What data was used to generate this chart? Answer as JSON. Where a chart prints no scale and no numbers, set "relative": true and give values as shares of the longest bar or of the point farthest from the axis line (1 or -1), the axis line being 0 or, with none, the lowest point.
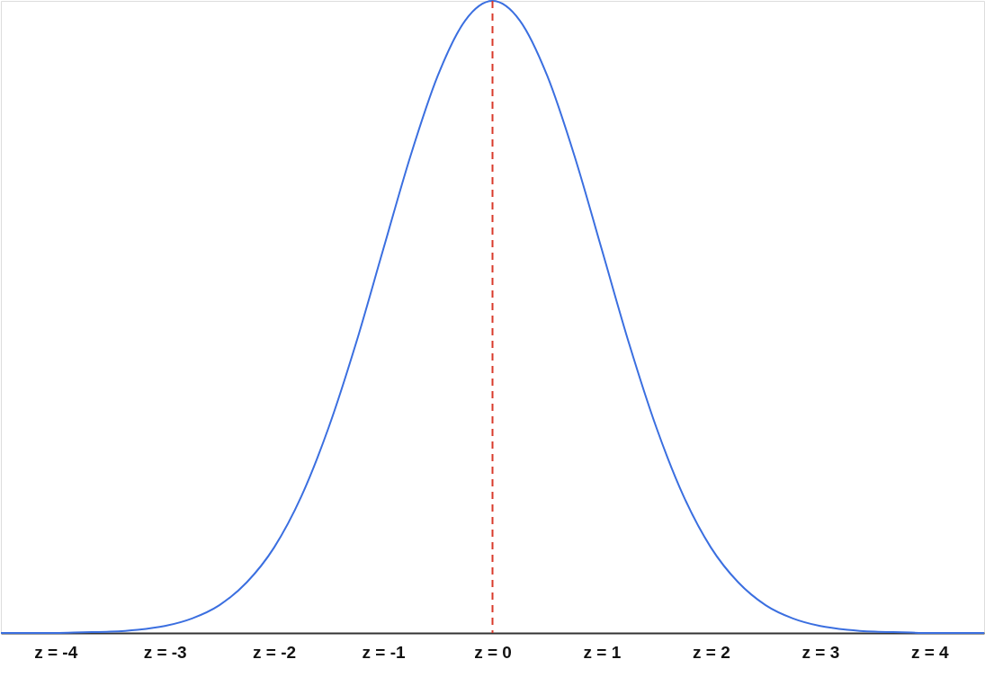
{
  "chart_data": {
    "type": "line",
    "relative": true,
    "x": [
      -4.5,
      -4.25,
      -4,
      -3.75,
      -3.5,
      -3.25,
      -3,
      -2.75,
      -2.5,
      -2.25,
      -2,
      -1.75,
      -1.5,
      -1.25,
      -1,
      -0.75,
      -0.5,
      -0.25,
      0,
      0.25,
      0.5,
      0.75,
      1,
      1.25,
      1.5,
      1.75,
      2,
      2.25,
      2.5,
      2.75,
      3,
      3.25,
      3.5,
      3.75,
      4,
      4.25,
      4.5
    ],
    "series": [
      {
        "color": "#3b6fe0",
        "values": [
          0,
          0,
          0,
          0.001,
          0.002,
          0.005,
          0.011,
          0.023,
          0.044,
          0.08,
          0.135,
          0.216,
          0.325,
          0.458,
          0.607,
          0.755,
          0.882,
          0.969,
          1,
          0.969,
          0.882,
          0.755,
          0.607,
          0.458,
          0.325,
          0.216,
          0.135,
          0.08,
          0.044,
          0.023,
          0.011,
          0.005,
          0.002,
          0.001,
          0,
          0,
          0
        ]
      }
    ],
    "xlim": [
      -4.5,
      4.5
    ],
    "xticks": [
      {
        "value": -4,
        "label": "z = -4"
      },
      {
        "value": -3,
        "label": "z = -3"
      },
      {
        "value": -2,
        "label": "z = -2"
      },
      {
        "value": -1,
        "label": "z = -1"
      },
      {
        "value": 0,
        "label": "z = 0"
      },
      {
        "value": 1,
        "label": "z = 1"
      },
      {
        "value": 2,
        "label": "z = 2"
      },
      {
        "value": 3,
        "label": "z = 3"
      },
      {
        "value": 4,
        "label": "z = 4"
      }
    ],
    "ref_lines": [
      {
        "axis": "x",
        "value": 0,
        "color": "#d93a2b",
        "line_style": "dashed"
      }
    ],
    "grid": false
  }
}
